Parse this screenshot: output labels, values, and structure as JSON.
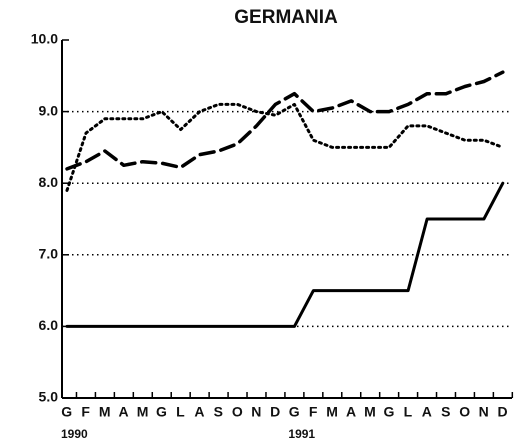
{
  "chart_data": {
    "type": "line",
    "title": "GERMANIA",
    "categories": [
      "G",
      "F",
      "M",
      "A",
      "M",
      "G",
      "L",
      "A",
      "S",
      "O",
      "N",
      "D",
      "G",
      "F",
      "M",
      "A",
      "M",
      "G",
      "L",
      "A",
      "S",
      "O",
      "N",
      "D"
    ],
    "years": [
      "1990",
      "1991"
    ],
    "series": [
      {
        "color": "#000000",
        "style": "solid",
        "values": [
          6,
          6,
          6,
          6,
          6,
          6,
          6,
          6,
          6,
          6,
          6,
          6,
          6,
          6.5,
          6.5,
          6.5,
          6.5,
          6.5,
          6.5,
          7.5,
          7.5,
          7.5,
          7.5,
          8.0
        ]
      },
      {
        "color": "#000000",
        "style": "dashed",
        "values": [
          8.2,
          8.3,
          8.45,
          8.25,
          8.3,
          8.28,
          8.22,
          8.4,
          8.45,
          8.55,
          8.8,
          9.1,
          9.25,
          9.0,
          9.05,
          9.15,
          9.0,
          9.0,
          9.1,
          9.25,
          9.25,
          9.35,
          9.42,
          9.55
        ]
      },
      {
        "color": "#000000",
        "style": "dotted",
        "values": [
          7.9,
          8.7,
          8.9,
          8.9,
          8.9,
          9.0,
          8.75,
          9.0,
          9.1,
          9.1,
          9.0,
          8.95,
          9.1,
          8.6,
          8.5,
          8.5,
          8.5,
          8.5,
          8.8,
          8.8,
          8.7,
          8.6,
          8.6,
          8.5
        ]
      }
    ],
    "ylim": [
      5,
      10
    ],
    "yticks": [
      {
        "value": 5,
        "label": "5.0"
      },
      {
        "value": 6,
        "label": "6.0"
      },
      {
        "value": 7,
        "label": "7.0"
      },
      {
        "value": 8,
        "label": "8.0"
      },
      {
        "value": 9,
        "label": "9.0"
      },
      {
        "value": 10,
        "label": "10.0"
      }
    ],
    "grid": true
  }
}
